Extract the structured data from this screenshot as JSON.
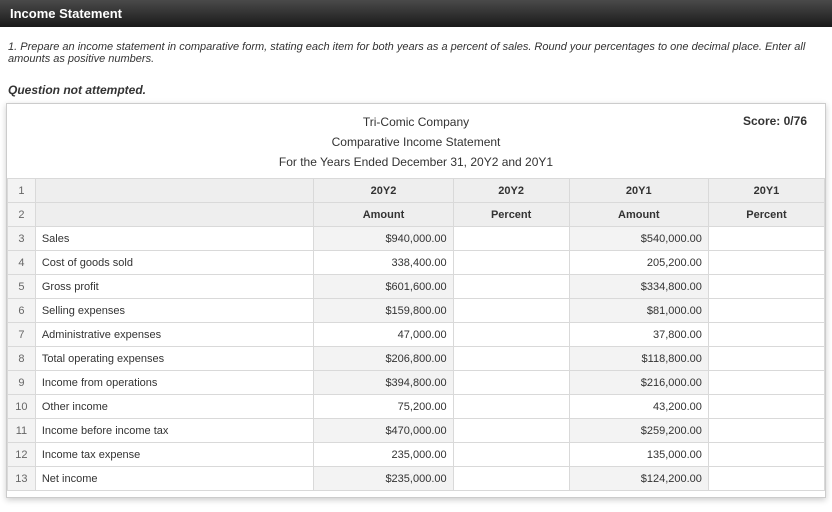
{
  "header": {
    "title": "Income Statement"
  },
  "instruction": "1. Prepare an income statement in comparative form, stating each item for both years as a percent of sales. Round your percentages to one decimal place. Enter all amounts as positive numbers.",
  "status": "Question not attempted.",
  "score_label": "Score: 0/76",
  "titles": {
    "company": "Tri-Comic Company",
    "report": "Comparative Income Statement",
    "period": "For the Years Ended December 31, 20Y2 and 20Y1"
  },
  "columns": {
    "y2": "20Y2",
    "y2_amount": "Amount",
    "y2_percent": "Percent",
    "y1": "20Y1",
    "y1_amount": "Amount",
    "y1_percent": "Percent"
  },
  "rows": [
    {
      "n": "3",
      "label": "Sales",
      "y2": "$940,000.00",
      "y1": "$540,000.00",
      "shade": true
    },
    {
      "n": "4",
      "label": "Cost of goods sold",
      "y2": "338,400.00",
      "y1": "205,200.00",
      "shade": false
    },
    {
      "n": "5",
      "label": "Gross profit",
      "y2": "$601,600.00",
      "y1": "$334,800.00",
      "shade": true
    },
    {
      "n": "6",
      "label": "Selling expenses",
      "y2": "$159,800.00",
      "y1": "$81,000.00",
      "shade": true
    },
    {
      "n": "7",
      "label": "Administrative expenses",
      "y2": "47,000.00",
      "y1": "37,800.00",
      "shade": false
    },
    {
      "n": "8",
      "label": "Total operating expenses",
      "y2": "$206,800.00",
      "y1": "$118,800.00",
      "shade": true
    },
    {
      "n": "9",
      "label": "Income from operations",
      "y2": "$394,800.00",
      "y1": "$216,000.00",
      "shade": true
    },
    {
      "n": "10",
      "label": "Other income",
      "y2": "75,200.00",
      "y1": "43,200.00",
      "shade": false
    },
    {
      "n": "11",
      "label": "Income before income tax",
      "y2": "$470,000.00",
      "y1": "$259,200.00",
      "shade": true
    },
    {
      "n": "12",
      "label": "Income tax expense",
      "y2": "235,000.00",
      "y1": "135,000.00",
      "shade": false
    },
    {
      "n": "13",
      "label": "Net income",
      "y2": "$235,000.00",
      "y1": "$124,200.00",
      "shade": true
    }
  ],
  "colors": {
    "header_grad_top": "#4a4a4a",
    "header_grad_bottom": "#1a1a1a",
    "grid_border": "#d9d9d9",
    "rowhdr_bg": "#f3f3f3",
    "colhdr_bg": "#eeeeee",
    "shade_bg": "#f3f3f3"
  }
}
